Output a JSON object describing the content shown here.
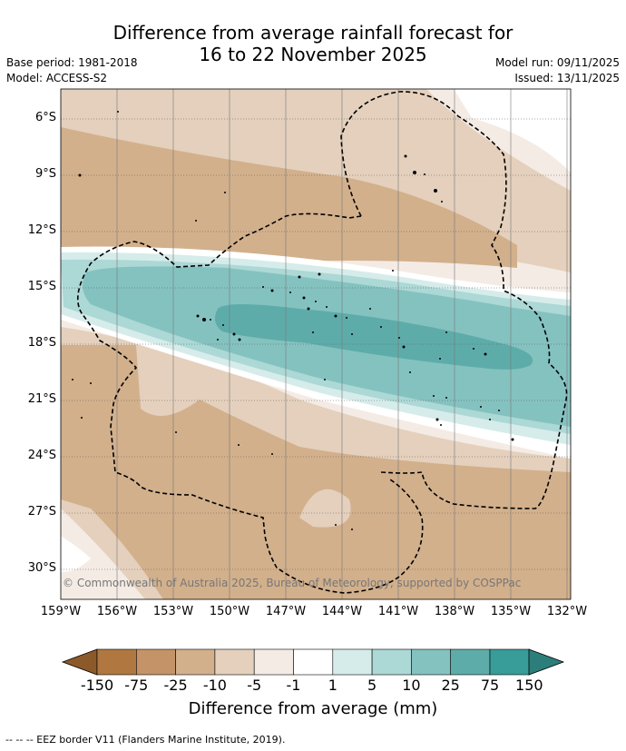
{
  "title": {
    "line1": "Difference from average rainfall forecast for",
    "line2": "16 to 22 November 2025"
  },
  "meta": {
    "base_period": "Base period: 1981-2018",
    "model": "Model: ACCESS-S2",
    "model_run": "Model run: 09/11/2025",
    "issued": "Issued: 13/11/2025"
  },
  "map": {
    "lat_labels": [
      "6°S",
      "9°S",
      "12°S",
      "15°S",
      "18°S",
      "21°S",
      "24°S",
      "27°S",
      "30°S"
    ],
    "lon_labels": [
      "159°W",
      "156°W",
      "153°W",
      "150°W",
      "147°W",
      "144°W",
      "141°W",
      "138°W",
      "135°W",
      "132°W"
    ],
    "copyright": "© Commonwealth of Australia 2025, Bureau of Meteorology, supported by COSPPac"
  },
  "colorbar": {
    "labels": [
      "-150",
      "-75",
      "-25",
      "-10",
      "-5",
      "-1",
      "1",
      "5",
      "10",
      "25",
      "75",
      "150"
    ],
    "colors": [
      "#b07840",
      "#c49468",
      "#d2b08c",
      "#e4d0bc",
      "#f4ebe4",
      "#ffffff",
      "#d6ecea",
      "#acd8d6",
      "#84c2c0",
      "#5eacaa",
      "#389c98"
    ],
    "low_extend_color": "#8c5a2a",
    "high_extend_color": "#2c7e7a",
    "title": "Difference from average (mm)"
  },
  "footnote": "--  --  -- EEZ border V11 (Flanders Marine Institute, 2019)."
}
